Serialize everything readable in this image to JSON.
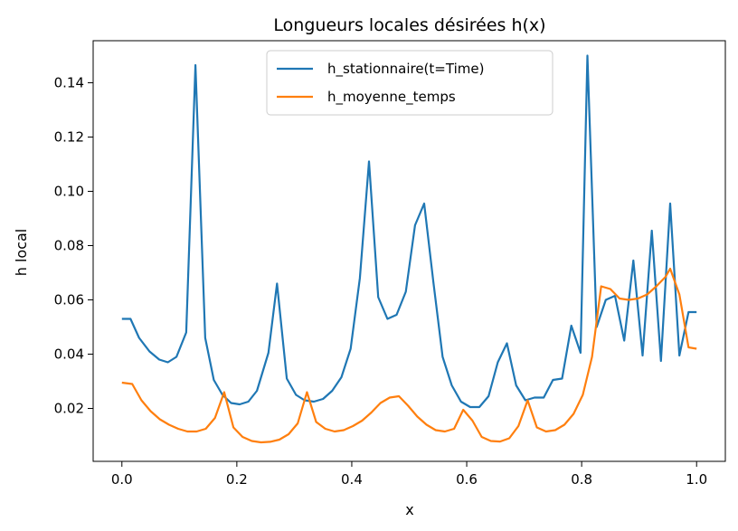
{
  "chart_data": {
    "type": "line",
    "title": "Longueurs locales désirées h(x)",
    "xlabel": "x",
    "ylabel": "h local",
    "xlim": [
      -0.05,
      1.05
    ],
    "ylim": [
      0.0005,
      0.1555
    ],
    "xticks": [
      0.0,
      0.2,
      0.4,
      0.6,
      0.8,
      1.0
    ],
    "xtick_labels": [
      "0.0",
      "0.2",
      "0.4",
      "0.6",
      "0.8",
      "1.0"
    ],
    "yticks": [
      0.02,
      0.04,
      0.06,
      0.08,
      0.1,
      0.12,
      0.14
    ],
    "ytick_labels": [
      "0.02",
      "0.04",
      "0.06",
      "0.08",
      "0.10",
      "0.12",
      "0.14"
    ],
    "grid": false,
    "legend_position": "top-center",
    "series": [
      {
        "name": "h_stationnaire(t=Time)",
        "color": "#1f77b4",
        "x": [
          0.0,
          0.015,
          0.03,
          0.048,
          0.065,
          0.08,
          0.095,
          0.112,
          0.128,
          0.145,
          0.16,
          0.175,
          0.19,
          0.205,
          0.22,
          0.235,
          0.255,
          0.27,
          0.287,
          0.303,
          0.318,
          0.334,
          0.35,
          0.366,
          0.382,
          0.398,
          0.414,
          0.43,
          0.446,
          0.462,
          0.478,
          0.494,
          0.51,
          0.526,
          0.542,
          0.558,
          0.574,
          0.59,
          0.606,
          0.622,
          0.638,
          0.654,
          0.67,
          0.686,
          0.702,
          0.718,
          0.734,
          0.75,
          0.766,
          0.782,
          0.798,
          0.81,
          0.826,
          0.842,
          0.858,
          0.874,
          0.89,
          0.906,
          0.922,
          0.938,
          0.954,
          0.97,
          0.986,
          1.0
        ],
        "y": [
          0.053,
          0.053,
          0.046,
          0.041,
          0.038,
          0.037,
          0.039,
          0.048,
          0.1465,
          0.046,
          0.0305,
          0.025,
          0.022,
          0.0215,
          0.0225,
          0.0265,
          0.0405,
          0.066,
          0.031,
          0.025,
          0.023,
          0.0225,
          0.0235,
          0.0265,
          0.0315,
          0.042,
          0.068,
          0.111,
          0.061,
          0.053,
          0.0545,
          0.063,
          0.0875,
          0.0955,
          0.0665,
          0.039,
          0.0285,
          0.0225,
          0.0205,
          0.0205,
          0.0245,
          0.037,
          0.044,
          0.0285,
          0.023,
          0.024,
          0.024,
          0.0305,
          0.031,
          0.0505,
          0.0405,
          0.15,
          0.05,
          0.06,
          0.0615,
          0.045,
          0.0745,
          0.0395,
          0.0855,
          0.0375,
          0.0955,
          0.0395,
          0.0555,
          0.0555
        ]
      },
      {
        "name": "h_moyenne_temps",
        "color": "#ff7f0e",
        "x": [
          0.0,
          0.018,
          0.034,
          0.05,
          0.066,
          0.082,
          0.098,
          0.114,
          0.13,
          0.146,
          0.162,
          0.178,
          0.194,
          0.21,
          0.226,
          0.242,
          0.258,
          0.274,
          0.29,
          0.306,
          0.322,
          0.338,
          0.354,
          0.37,
          0.386,
          0.402,
          0.418,
          0.434,
          0.45,
          0.466,
          0.482,
          0.498,
          0.514,
          0.53,
          0.546,
          0.562,
          0.578,
          0.594,
          0.61,
          0.626,
          0.642,
          0.658,
          0.674,
          0.69,
          0.706,
          0.722,
          0.738,
          0.754,
          0.77,
          0.786,
          0.802,
          0.818,
          0.834,
          0.85,
          0.866,
          0.882,
          0.898,
          0.914,
          0.93,
          0.946,
          0.954,
          0.97,
          0.986,
          1.0
        ],
        "y": [
          0.0295,
          0.029,
          0.023,
          0.019,
          0.016,
          0.014,
          0.0125,
          0.0115,
          0.0115,
          0.0125,
          0.0165,
          0.026,
          0.013,
          0.0095,
          0.008,
          0.0075,
          0.0077,
          0.0085,
          0.0105,
          0.0145,
          0.026,
          0.015,
          0.0125,
          0.0115,
          0.012,
          0.0135,
          0.0155,
          0.0185,
          0.022,
          0.024,
          0.0245,
          0.021,
          0.017,
          0.014,
          0.012,
          0.0115,
          0.0125,
          0.0195,
          0.0155,
          0.0095,
          0.008,
          0.0078,
          0.009,
          0.0135,
          0.023,
          0.013,
          0.0115,
          0.012,
          0.014,
          0.018,
          0.025,
          0.039,
          0.065,
          0.064,
          0.0605,
          0.06,
          0.0605,
          0.062,
          0.065,
          0.0685,
          0.0715,
          0.062,
          0.0425,
          0.042
        ]
      }
    ]
  }
}
